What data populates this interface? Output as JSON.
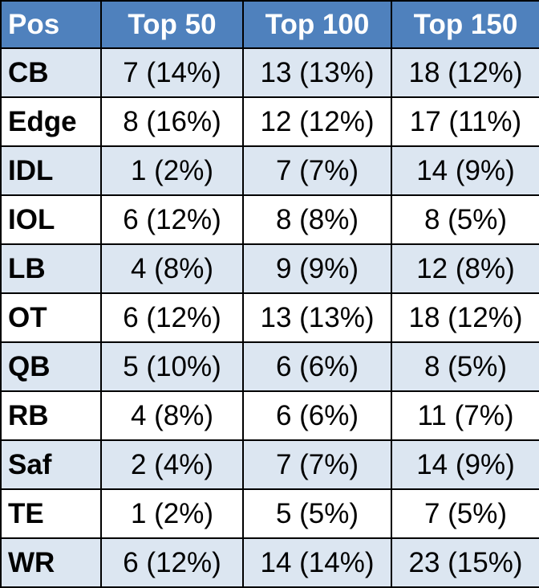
{
  "colors": {
    "header_bg": "#4f81bd",
    "header_text": "#ffffff",
    "band_bg": "#dce6f1",
    "plain_bg": "#ffffff",
    "border": "#000000"
  },
  "headers": [
    "Pos",
    "Top 50",
    "Top 100",
    "Top 150"
  ],
  "rows": [
    [
      "CB",
      "7 (14%)",
      "13 (13%)",
      "18 (12%)"
    ],
    [
      "Edge",
      "8 (16%)",
      "12 (12%)",
      "17 (11%)"
    ],
    [
      "IDL",
      "1 (2%)",
      "7 (7%)",
      "14 (9%)"
    ],
    [
      "IOL",
      "6 (12%)",
      "8 (8%)",
      "8 (5%)"
    ],
    [
      "LB",
      "4 (8%)",
      "9 (9%)",
      "12 (8%)"
    ],
    [
      "OT",
      "6 (12%)",
      "13 (13%)",
      "18 (12%)"
    ],
    [
      "QB",
      "5 (10%)",
      "6 (6%)",
      "8 (5%)"
    ],
    [
      "RB",
      "4 (8%)",
      "6 (6%)",
      "11 (7%)"
    ],
    [
      "Saf",
      "2 (4%)",
      "7 (7%)",
      "14 (9%)"
    ],
    [
      "TE",
      "1 (2%)",
      "5 (5%)",
      "7 (5%)"
    ],
    [
      "WR",
      "6 (12%)",
      "14 (14%)",
      "23 (15%)"
    ]
  ]
}
